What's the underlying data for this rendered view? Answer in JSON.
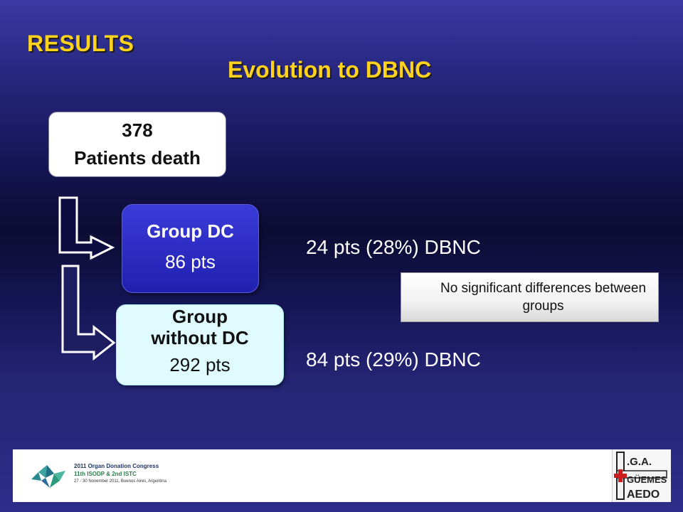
{
  "header": {
    "title": "RESULTS",
    "subtitle": "Evolution to DBNC"
  },
  "flow": {
    "total": {
      "count": "378",
      "label": "Patients death"
    },
    "group_dc": {
      "label": "Group DC",
      "count": "86 pts"
    },
    "group_no_dc": {
      "label": "Group without DC",
      "count": "292 pts"
    }
  },
  "results": {
    "dc": "24 pts (28%) DBNC",
    "no_dc": "84 pts (29%) DBNC"
  },
  "note": "No significant differences between groups",
  "footer": {
    "congress_title": "2011 Organ Donation Congress",
    "congress_sub": "11th ISODP & 2nd ISTC",
    "congress_date": "27 - 30 November 2011, Buenos Aires, Argentina",
    "hospital_logo_text": "H.I.G.A. GÜEMES HAEDO"
  },
  "colors": {
    "heading": "#ffd21e",
    "dc_box": "#2a2ac4",
    "no_dc_box": "#dffbfd"
  }
}
